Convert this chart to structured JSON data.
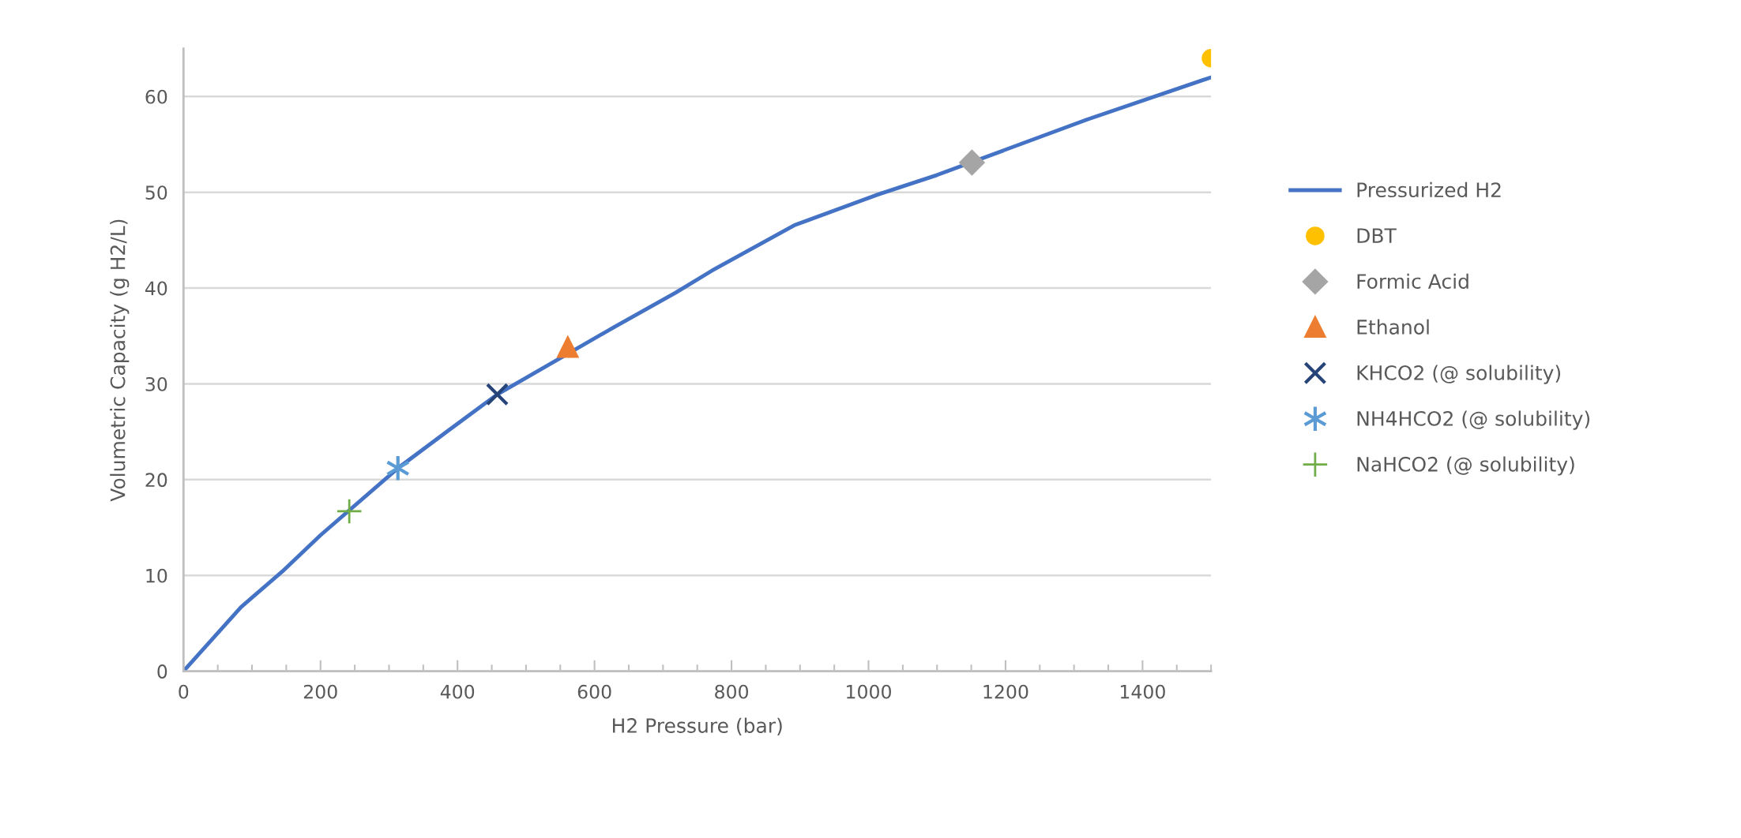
{
  "chart_data": {
    "type": "line",
    "xlabel": "H2 Pressure (bar)",
    "ylabel": "Volumetric Capacity (g H2/L)",
    "xlim": [
      0,
      1500
    ],
    "xticks": [
      0,
      200,
      400,
      600,
      800,
      1000,
      1200,
      1400
    ],
    "ylim": [
      0,
      65
    ],
    "yticks": [
      0,
      10,
      20,
      30,
      40,
      50,
      60
    ],
    "grid": "y",
    "legend": "right",
    "series": [
      {
        "name": "Pressurized H2",
        "color": "#4472c4",
        "marker": "none",
        "line_style": "solid",
        "x": [
          0,
          84,
          144,
          200,
          313,
          386,
          458,
          628,
          718,
          771,
          893,
          1015,
          1100,
          1319,
          1500
        ],
        "values": [
          0,
          6.7,
          10.4,
          14.2,
          21.2,
          25.1,
          28.9,
          35.9,
          39.5,
          41.8,
          46.6,
          49.8,
          51.8,
          57.6,
          62.0
        ]
      },
      {
        "name": "DBT",
        "type": "scatter",
        "color": "#ffc000",
        "marker": "circle",
        "x": [
          1500
        ],
        "values": [
          64.0
        ]
      },
      {
        "name": "Formic Acid",
        "type": "scatter",
        "color": "#a5a5a5",
        "marker": "diamond",
        "x": [
          1151
        ],
        "values": [
          53.1
        ]
      },
      {
        "name": "Ethanol",
        "type": "scatter",
        "color": "#ed7d31",
        "marker": "triangle",
        "x": [
          561
        ],
        "values": [
          33.8
        ]
      },
      {
        "name": "KHCO2 (@ solubility)",
        "type": "scatter",
        "color": "#264478",
        "marker": "x",
        "x": [
          458
        ],
        "values": [
          28.9
        ]
      },
      {
        "name": "NH4HCO2 (@ solubility)",
        "type": "scatter",
        "color": "#5b9bd5",
        "marker": "cross",
        "x": [
          313
        ],
        "values": [
          21.2
        ]
      },
      {
        "name": "NaHCO2 (@ solubility)",
        "type": "scatter",
        "color": "#70ad47",
        "x": [
          242
        ],
        "values": [
          16.7
        ]
      }
    ]
  }
}
